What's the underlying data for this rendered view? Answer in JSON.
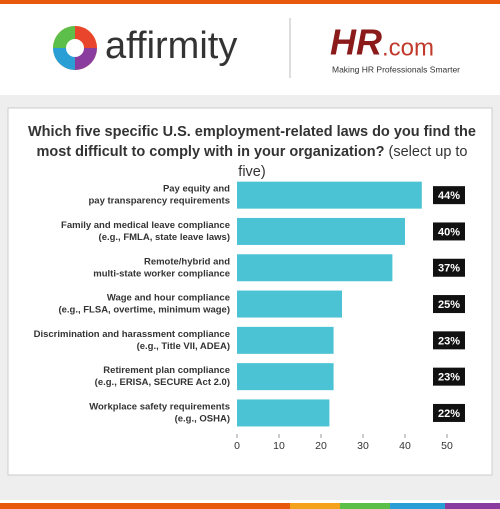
{
  "header": {
    "logo_left": "affirmity",
    "logo_right_main": "HR",
    "logo_right_suffix": ".com",
    "tagline": "Making HR Professionals Smarter"
  },
  "chart_data": {
    "type": "bar",
    "orientation": "horizontal",
    "title": "Which five specific U.S. employment-related laws do you find the most difficult to comply with in your organization?",
    "subtitle": "(select up to five)",
    "categories": [
      [
        "Pay equity and",
        "pay transparency requirements"
      ],
      [
        "Family and medical leave compliance",
        "(e.g., FMLA, state leave laws)"
      ],
      [
        "Remote/hybrid and",
        "multi-state worker compliance"
      ],
      [
        "Wage and hour compliance",
        "(e.g., FLSA, overtime, minimum wage)"
      ],
      [
        "Discrimination and harassment compliance",
        "(e.g., Title VII, ADEA)"
      ],
      [
        "Retirement plan compliance",
        "(e.g., ERISA, SECURE Act 2.0)"
      ],
      [
        "Workplace safety requirements",
        "(e.g., OSHA)"
      ]
    ],
    "values": [
      44,
      40,
      37,
      25,
      23,
      23,
      22
    ],
    "value_labels": [
      "44%",
      "40%",
      "37%",
      "25%",
      "23%",
      "23%",
      "22%"
    ],
    "color": "#4cc3d5",
    "xlim": [
      0,
      50
    ],
    "xticks": [
      0,
      10,
      20,
      30,
      40,
      50
    ],
    "grid": false
  }
}
